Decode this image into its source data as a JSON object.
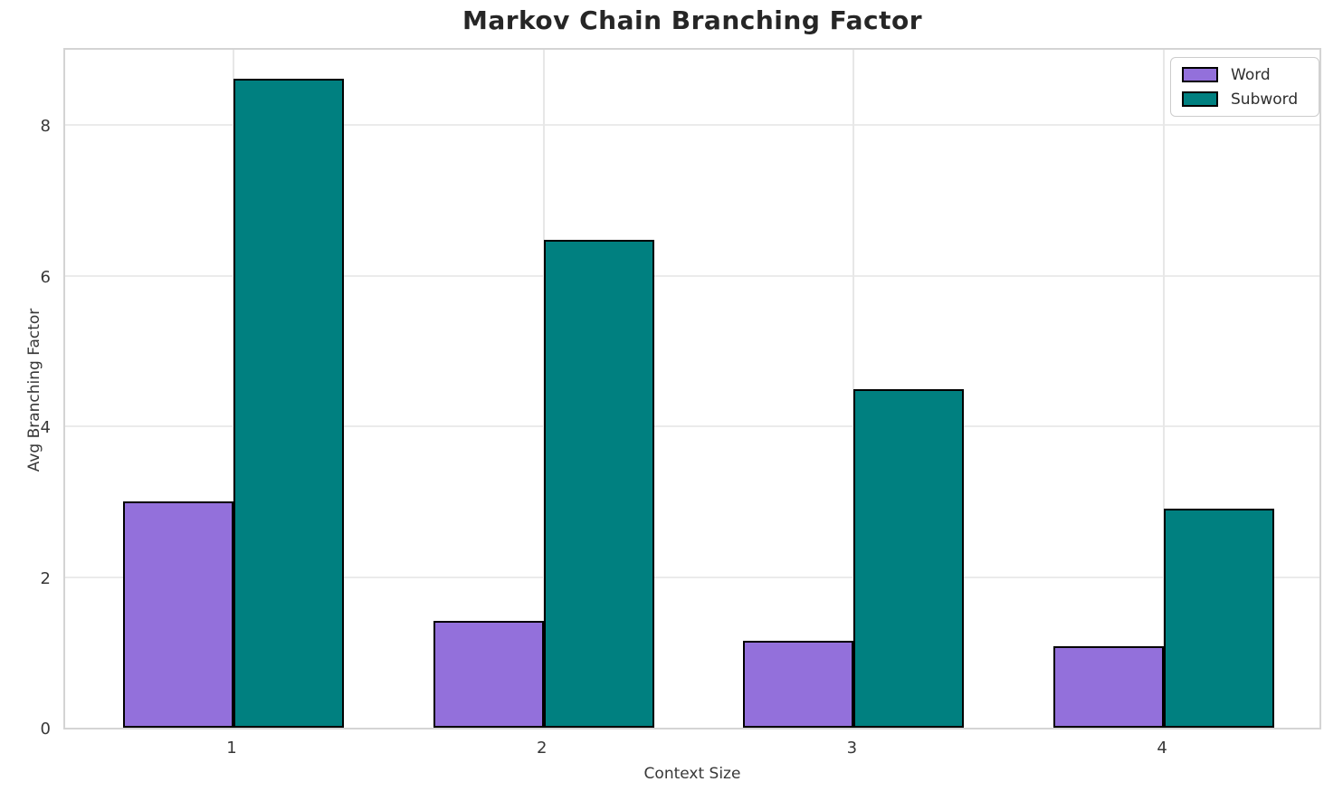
{
  "chart_data": {
    "type": "bar",
    "title": "Markov Chain Branching Factor",
    "xlabel": "Context Size",
    "ylabel": "Avg Branching Factor",
    "categories": [
      "1",
      "2",
      "3",
      "4"
    ],
    "series": [
      {
        "name": "Word",
        "color": "#9370DB",
        "values": [
          3.0,
          1.42,
          1.15,
          1.08
        ]
      },
      {
        "name": "Subword",
        "color": "#008080",
        "values": [
          8.62,
          6.48,
          4.5,
          2.91
        ]
      }
    ],
    "ylim": [
      0,
      9.05
    ],
    "yticks": [
      0,
      2,
      4,
      6,
      8
    ],
    "grid": true,
    "grid_color": "#e9e9e9",
    "bar_edge_color": "#000000",
    "legend_position": "upper right",
    "legend_labels": [
      "Word",
      "Subword"
    ]
  }
}
